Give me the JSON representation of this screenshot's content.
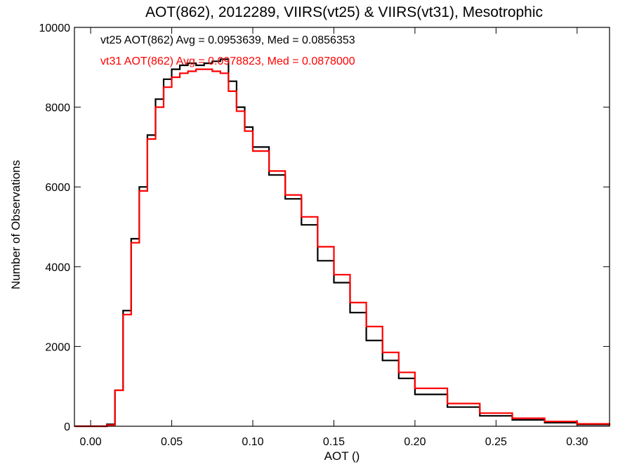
{
  "chart_data": {
    "type": "line",
    "title": "AOT(862), 2012289, VIIRS(vt25) & VIIRS(vt31), Mesotrophic",
    "xlabel": "AOT ()",
    "ylabel": "Number of Observations",
    "xlim": [
      -0.01,
      0.32
    ],
    "ylim": [
      0,
      10000
    ],
    "xticks": [
      "0.00",
      "0.05",
      "0.10",
      "0.15",
      "0.20",
      "0.25",
      "0.30"
    ],
    "yticks": [
      "0",
      "2000",
      "4000",
      "6000",
      "8000",
      "10000"
    ],
    "grid": false,
    "legend_position": "top-left",
    "x": [
      0.0,
      0.01,
      0.015,
      0.02,
      0.025,
      0.03,
      0.035,
      0.04,
      0.045,
      0.05,
      0.055,
      0.06,
      0.065,
      0.07,
      0.075,
      0.08,
      0.085,
      0.09,
      0.095,
      0.1,
      0.11,
      0.12,
      0.13,
      0.14,
      0.15,
      0.16,
      0.17,
      0.18,
      0.19,
      0.2,
      0.22,
      0.24,
      0.26,
      0.28,
      0.3,
      0.32
    ],
    "series": [
      {
        "name": "vt25",
        "legend": "vt25 AOT(862) Avg = 0.0953639, Med = 0.0856353",
        "color": "#000000",
        "values": [
          0,
          50,
          900,
          2900,
          4700,
          6000,
          7300,
          8200,
          8700,
          8950,
          9050,
          9100,
          9050,
          9100,
          9150,
          9200,
          8650,
          8000,
          7500,
          7000,
          6300,
          5700,
          5050,
          4150,
          3600,
          2850,
          2150,
          1650,
          1200,
          800,
          480,
          260,
          160,
          90,
          40,
          20
        ]
      },
      {
        "name": "vt31",
        "legend": "vt31 AOT(862) Avg = 0.0978823, Med = 0.0878000",
        "color": "#ff0000",
        "values": [
          0,
          30,
          900,
          2800,
          4600,
          5900,
          7200,
          8000,
          8500,
          8750,
          8850,
          8900,
          8950,
          8950,
          8900,
          8850,
          8400,
          7900,
          7400,
          6900,
          6400,
          5800,
          5250,
          4500,
          3800,
          3100,
          2500,
          1850,
          1350,
          950,
          570,
          330,
          200,
          120,
          60,
          20
        ]
      }
    ]
  }
}
